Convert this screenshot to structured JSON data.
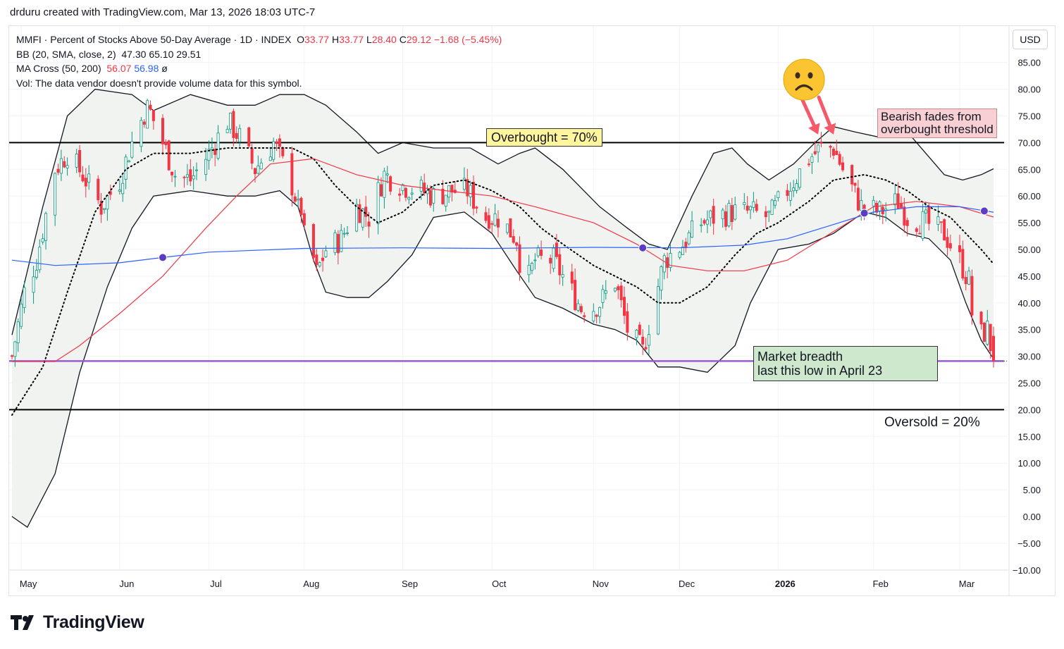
{
  "header": {
    "attribution": "drduru created with TradingView.com, Mar 13, 2026 18:03 UTC-7"
  },
  "legend": {
    "symbol_line": "MMFI · Percent of Stocks Above 50-Day Average · 1D · INDEX",
    "ohlc": {
      "o_label": "O",
      "o": "33.77",
      "h_label": "H",
      "h": "33.77",
      "l_label": "L",
      "l": "28.40",
      "c_label": "C",
      "c": "29.12",
      "change": "−1.68 (−5.45%)"
    },
    "bb_label": "BB (20, SMA, close, 2)",
    "bb_values": [
      "47.30",
      "65.10",
      "29.51"
    ],
    "ma_label": "MA Cross (50, 200)",
    "ma_values": [
      "56.07",
      "56.98"
    ],
    "ma_suffix": "ø",
    "vol_line": "Vol: The data vendor doesn't provide volume data for this symbol."
  },
  "currency_button": "USD",
  "brand": {
    "name": "TradingView",
    "logo_icon": "tradingview-logo-icon"
  },
  "annotations": {
    "overbought": "Overbought = 70%",
    "bearish_line1": "Bearish fades from",
    "bearish_line2": "overbought threshold",
    "breadth_line1": "Market breadth",
    "breadth_line2": "last this low in April 23",
    "oversold": "Oversold = 20%",
    "emoji_icon": "frowning-face-icon",
    "arrow_icon": "down-arrow-icon"
  },
  "colors": {
    "up": "#089981",
    "down": "#f23645",
    "ma50": "#f23645",
    "ma200": "#2962ff",
    "bb": "#131722",
    "bb_fill": "#f0f3f0",
    "support": "#9b59d6",
    "cross": "#5b3cc4"
  },
  "chart_data": {
    "type": "candlestick",
    "y_axis": {
      "min": -10,
      "max": 85,
      "step": 5,
      "ticks": [
        "85.00",
        "80.00",
        "75.00",
        "70.00",
        "65.00",
        "60.00",
        "55.00",
        "50.00",
        "45.00",
        "40.00",
        "35.00",
        "30.00",
        "25.00",
        "20.00",
        "15.00",
        "10.00",
        "5.00",
        "0.00",
        "−5.00",
        "−10.00"
      ],
      "side": "right"
    },
    "x_axis": {
      "ticks": [
        {
          "label": "May",
          "date": "2025-05-01",
          "bold": false
        },
        {
          "label": "Jun",
          "date": "2025-06-02",
          "bold": false
        },
        {
          "label": "Jul",
          "date": "2025-07-01",
          "bold": false
        },
        {
          "label": "Aug",
          "date": "2025-08-01",
          "bold": false
        },
        {
          "label": "Sep",
          "date": "2025-09-02",
          "bold": false
        },
        {
          "label": "Oct",
          "date": "2025-10-01",
          "bold": false
        },
        {
          "label": "Nov",
          "date": "2025-11-03",
          "bold": false
        },
        {
          "label": "Dec",
          "date": "2025-12-01",
          "bold": false
        },
        {
          "label": "2026",
          "date": "2026-01-02",
          "bold": true
        },
        {
          "label": "Feb",
          "date": "2026-02-02",
          "bold": false
        },
        {
          "label": "Mar",
          "date": "2026-03-02",
          "bold": false
        }
      ]
    },
    "date_range": [
      "2025-04-28",
      "2026-03-13"
    ],
    "horizontal_lines": [
      {
        "name": "overbought",
        "value": 70
      },
      {
        "name": "oversold",
        "value": 20
      },
      {
        "name": "april-low",
        "value": 29.1
      }
    ],
    "close": [
      {
        "date": "2025-04-28",
        "value": 30
      },
      {
        "date": "2025-05-02",
        "value": 42
      },
      {
        "date": "2025-05-06",
        "value": 48
      },
      {
        "date": "2025-05-12",
        "value": 65
      },
      {
        "date": "2025-05-16",
        "value": 68
      },
      {
        "date": "2025-05-21",
        "value": 64
      },
      {
        "date": "2025-05-27",
        "value": 58
      },
      {
        "date": "2025-06-02",
        "value": 63
      },
      {
        "date": "2025-06-06",
        "value": 70
      },
      {
        "date": "2025-06-11",
        "value": 77
      },
      {
        "date": "2025-06-16",
        "value": 70
      },
      {
        "date": "2025-06-20",
        "value": 64
      },
      {
        "date": "2025-06-25",
        "value": 63
      },
      {
        "date": "2025-07-01",
        "value": 68
      },
      {
        "date": "2025-07-07",
        "value": 74
      },
      {
        "date": "2025-07-11",
        "value": 71
      },
      {
        "date": "2025-07-16",
        "value": 65
      },
      {
        "date": "2025-07-22",
        "value": 70
      },
      {
        "date": "2025-07-28",
        "value": 62
      },
      {
        "date": "2025-07-31",
        "value": 55
      },
      {
        "date": "2025-08-04",
        "value": 44
      },
      {
        "date": "2025-08-08",
        "value": 50
      },
      {
        "date": "2025-08-13",
        "value": 52
      },
      {
        "date": "2025-08-18",
        "value": 58
      },
      {
        "date": "2025-08-22",
        "value": 56
      },
      {
        "date": "2025-08-27",
        "value": 64
      },
      {
        "date": "2025-09-02",
        "value": 62
      },
      {
        "date": "2025-09-08",
        "value": 61
      },
      {
        "date": "2025-09-12",
        "value": 60
      },
      {
        "date": "2025-09-18",
        "value": 61
      },
      {
        "date": "2025-09-23",
        "value": 61
      },
      {
        "date": "2025-09-29",
        "value": 56
      },
      {
        "date": "2025-10-03",
        "value": 56
      },
      {
        "date": "2025-10-09",
        "value": 52
      },
      {
        "date": "2025-10-10",
        "value": 40
      },
      {
        "date": "2025-10-15",
        "value": 48
      },
      {
        "date": "2025-10-21",
        "value": 48
      },
      {
        "date": "2025-10-27",
        "value": 42
      },
      {
        "date": "2025-10-31",
        "value": 38
      },
      {
        "date": "2025-11-05",
        "value": 40
      },
      {
        "date": "2025-11-10",
        "value": 44
      },
      {
        "date": "2025-11-14",
        "value": 35
      },
      {
        "date": "2025-11-20",
        "value": 30
      },
      {
        "date": "2025-11-21",
        "value": 36
      },
      {
        "date": "2025-11-26",
        "value": 48
      },
      {
        "date": "2025-12-02",
        "value": 51
      },
      {
        "date": "2025-12-08",
        "value": 55
      },
      {
        "date": "2025-12-12",
        "value": 56
      },
      {
        "date": "2025-12-18",
        "value": 57
      },
      {
        "date": "2025-12-24",
        "value": 57
      },
      {
        "date": "2025-12-30",
        "value": 56
      },
      {
        "date": "2026-01-06",
        "value": 62
      },
      {
        "date": "2026-01-12",
        "value": 67
      },
      {
        "date": "2026-01-16",
        "value": 69
      },
      {
        "date": "2026-01-20",
        "value": 69
      },
      {
        "date": "2026-01-23",
        "value": 65
      },
      {
        "date": "2026-01-29",
        "value": 58
      },
      {
        "date": "2026-02-04",
        "value": 57
      },
      {
        "date": "2026-02-10",
        "value": 59
      },
      {
        "date": "2026-02-13",
        "value": 56
      },
      {
        "date": "2026-02-19",
        "value": 55
      },
      {
        "date": "2026-02-25",
        "value": 53
      },
      {
        "date": "2026-03-02",
        "value": 48
      },
      {
        "date": "2026-03-05",
        "value": 44
      },
      {
        "date": "2026-03-06",
        "value": 38
      },
      {
        "date": "2026-03-09",
        "value": 34
      },
      {
        "date": "2026-03-11",
        "value": 35
      },
      {
        "date": "2026-03-13",
        "value": 29.12
      }
    ],
    "bb_upper": [
      {
        "date": "2025-04-28",
        "value": 34
      },
      {
        "date": "2025-05-08",
        "value": 58
      },
      {
        "date": "2025-05-16",
        "value": 75
      },
      {
        "date": "2025-05-25",
        "value": 80
      },
      {
        "date": "2025-06-06",
        "value": 79
      },
      {
        "date": "2025-06-13",
        "value": 76
      },
      {
        "date": "2025-06-25",
        "value": 79
      },
      {
        "date": "2025-07-07",
        "value": 77
      },
      {
        "date": "2025-07-16",
        "value": 77
      },
      {
        "date": "2025-07-24",
        "value": 79
      },
      {
        "date": "2025-08-01",
        "value": 79
      },
      {
        "date": "2025-08-08",
        "value": 77
      },
      {
        "date": "2025-08-18",
        "value": 72
      },
      {
        "date": "2025-08-25",
        "value": 68
      },
      {
        "date": "2025-09-02",
        "value": 70
      },
      {
        "date": "2025-09-12",
        "value": 69
      },
      {
        "date": "2025-09-24",
        "value": 69
      },
      {
        "date": "2025-10-03",
        "value": 66
      },
      {
        "date": "2025-10-10",
        "value": 68
      },
      {
        "date": "2025-10-15",
        "value": 69
      },
      {
        "date": "2025-10-24",
        "value": 65
      },
      {
        "date": "2025-11-05",
        "value": 58
      },
      {
        "date": "2025-11-14",
        "value": 54
      },
      {
        "date": "2025-11-21",
        "value": 51
      },
      {
        "date": "2025-11-27",
        "value": 50
      },
      {
        "date": "2025-12-05",
        "value": 60
      },
      {
        "date": "2025-12-12",
        "value": 68
      },
      {
        "date": "2025-12-18",
        "value": 69
      },
      {
        "date": "2025-12-23",
        "value": 66
      },
      {
        "date": "2025-12-30",
        "value": 63
      },
      {
        "date": "2026-01-07",
        "value": 66
      },
      {
        "date": "2026-01-14",
        "value": 70
      },
      {
        "date": "2026-01-20",
        "value": 73
      },
      {
        "date": "2026-01-27",
        "value": 72
      },
      {
        "date": "2026-02-04",
        "value": 71
      },
      {
        "date": "2026-02-13",
        "value": 72
      },
      {
        "date": "2026-02-19",
        "value": 68
      },
      {
        "date": "2026-02-25",
        "value": 64
      },
      {
        "date": "2026-03-03",
        "value": 63
      },
      {
        "date": "2026-03-09",
        "value": 64
      },
      {
        "date": "2026-03-13",
        "value": 65.1
      }
    ],
    "bb_lower": [
      {
        "date": "2025-04-28",
        "value": 0
      },
      {
        "date": "2025-05-03",
        "value": -2
      },
      {
        "date": "2025-05-12",
        "value": 8
      },
      {
        "date": "2025-05-20",
        "value": 27
      },
      {
        "date": "2025-05-29",
        "value": 43
      },
      {
        "date": "2025-06-06",
        "value": 54
      },
      {
        "date": "2025-06-13",
        "value": 60
      },
      {
        "date": "2025-06-25",
        "value": 61
      },
      {
        "date": "2025-07-07",
        "value": 60
      },
      {
        "date": "2025-07-16",
        "value": 60
      },
      {
        "date": "2025-07-24",
        "value": 61
      },
      {
        "date": "2025-07-30",
        "value": 58
      },
      {
        "date": "2025-08-04",
        "value": 48
      },
      {
        "date": "2025-08-08",
        "value": 42
      },
      {
        "date": "2025-08-15",
        "value": 41
      },
      {
        "date": "2025-08-22",
        "value": 41
      },
      {
        "date": "2025-08-28",
        "value": 44
      },
      {
        "date": "2025-09-05",
        "value": 49
      },
      {
        "date": "2025-09-12",
        "value": 56
      },
      {
        "date": "2025-09-22",
        "value": 57
      },
      {
        "date": "2025-10-01",
        "value": 53
      },
      {
        "date": "2025-10-09",
        "value": 46
      },
      {
        "date": "2025-10-15",
        "value": 41
      },
      {
        "date": "2025-10-24",
        "value": 39
      },
      {
        "date": "2025-11-03",
        "value": 36
      },
      {
        "date": "2025-11-10",
        "value": 35
      },
      {
        "date": "2025-11-17",
        "value": 33
      },
      {
        "date": "2025-11-24",
        "value": 28
      },
      {
        "date": "2025-12-01",
        "value": 28
      },
      {
        "date": "2025-12-10",
        "value": 27
      },
      {
        "date": "2025-12-19",
        "value": 32
      },
      {
        "date": "2025-12-24",
        "value": 40
      },
      {
        "date": "2026-01-02",
        "value": 50
      },
      {
        "date": "2026-01-12",
        "value": 51
      },
      {
        "date": "2026-01-20",
        "value": 53
      },
      {
        "date": "2026-01-30",
        "value": 57
      },
      {
        "date": "2026-02-06",
        "value": 56
      },
      {
        "date": "2026-02-13",
        "value": 53
      },
      {
        "date": "2026-02-20",
        "value": 52
      },
      {
        "date": "2026-02-27",
        "value": 48
      },
      {
        "date": "2026-03-04",
        "value": 40
      },
      {
        "date": "2026-03-09",
        "value": 33
      },
      {
        "date": "2026-03-13",
        "value": 29.51
      }
    ],
    "bb_basis": [
      {
        "date": "2025-04-28",
        "value": 19
      },
      {
        "date": "2025-05-08",
        "value": 28
      },
      {
        "date": "2025-05-16",
        "value": 42
      },
      {
        "date": "2025-05-25",
        "value": 57
      },
      {
        "date": "2025-06-04",
        "value": 65
      },
      {
        "date": "2025-06-13",
        "value": 68
      },
      {
        "date": "2025-06-25",
        "value": 68
      },
      {
        "date": "2025-07-07",
        "value": 69
      },
      {
        "date": "2025-07-16",
        "value": 69
      },
      {
        "date": "2025-07-28",
        "value": 69
      },
      {
        "date": "2025-08-04",
        "value": 67
      },
      {
        "date": "2025-08-11",
        "value": 62
      },
      {
        "date": "2025-08-18",
        "value": 58
      },
      {
        "date": "2025-08-25",
        "value": 55
      },
      {
        "date": "2025-09-02",
        "value": 57
      },
      {
        "date": "2025-09-12",
        "value": 62
      },
      {
        "date": "2025-09-22",
        "value": 63
      },
      {
        "date": "2025-10-01",
        "value": 61
      },
      {
        "date": "2025-10-10",
        "value": 58
      },
      {
        "date": "2025-10-17",
        "value": 54
      },
      {
        "date": "2025-10-24",
        "value": 51
      },
      {
        "date": "2025-11-03",
        "value": 47
      },
      {
        "date": "2025-11-10",
        "value": 45
      },
      {
        "date": "2025-11-17",
        "value": 43
      },
      {
        "date": "2025-11-24",
        "value": 40
      },
      {
        "date": "2025-12-01",
        "value": 40
      },
      {
        "date": "2025-12-10",
        "value": 43
      },
      {
        "date": "2025-12-19",
        "value": 49
      },
      {
        "date": "2025-12-26",
        "value": 53
      },
      {
        "date": "2026-01-02",
        "value": 55
      },
      {
        "date": "2026-01-12",
        "value": 59
      },
      {
        "date": "2026-01-20",
        "value": 63
      },
      {
        "date": "2026-01-30",
        "value": 64
      },
      {
        "date": "2026-02-06",
        "value": 63
      },
      {
        "date": "2026-02-13",
        "value": 61
      },
      {
        "date": "2026-02-20",
        "value": 58
      },
      {
        "date": "2026-02-27",
        "value": 56
      },
      {
        "date": "2026-03-04",
        "value": 53
      },
      {
        "date": "2026-03-09",
        "value": 50
      },
      {
        "date": "2026-03-13",
        "value": 47.3
      }
    ],
    "ma50": [
      {
        "date": "2025-04-28",
        "value": 29
      },
      {
        "date": "2025-05-12",
        "value": 29
      },
      {
        "date": "2025-05-20",
        "value": 32
      },
      {
        "date": "2025-06-02",
        "value": 38
      },
      {
        "date": "2025-06-16",
        "value": 45
      },
      {
        "date": "2025-06-30",
        "value": 54
      },
      {
        "date": "2025-07-10",
        "value": 60
      },
      {
        "date": "2025-07-21",
        "value": 66
      },
      {
        "date": "2025-08-04",
        "value": 67
      },
      {
        "date": "2025-08-18",
        "value": 64
      },
      {
        "date": "2025-09-02",
        "value": 62
      },
      {
        "date": "2025-09-16",
        "value": 61
      },
      {
        "date": "2025-10-01",
        "value": 60
      },
      {
        "date": "2025-10-15",
        "value": 58
      },
      {
        "date": "2025-11-03",
        "value": 55
      },
      {
        "date": "2025-11-17",
        "value": 51
      },
      {
        "date": "2025-11-28",
        "value": 47
      },
      {
        "date": "2025-12-10",
        "value": 46
      },
      {
        "date": "2025-12-22",
        "value": 46
      },
      {
        "date": "2026-01-05",
        "value": 48
      },
      {
        "date": "2026-01-19",
        "value": 53
      },
      {
        "date": "2026-02-02",
        "value": 58
      },
      {
        "date": "2026-02-16",
        "value": 59
      },
      {
        "date": "2026-03-02",
        "value": 58
      },
      {
        "date": "2026-03-13",
        "value": 56.07
      }
    ],
    "ma200": [
      {
        "date": "2025-04-28",
        "value": 48
      },
      {
        "date": "2025-05-12",
        "value": 47
      },
      {
        "date": "2025-06-02",
        "value": 47.5
      },
      {
        "date": "2025-06-16",
        "value": 48.5
      },
      {
        "date": "2025-07-01",
        "value": 49.5
      },
      {
        "date": "2025-08-01",
        "value": 50.2
      },
      {
        "date": "2025-09-02",
        "value": 50.3
      },
      {
        "date": "2025-10-01",
        "value": 50.2
      },
      {
        "date": "2025-11-03",
        "value": 50.4
      },
      {
        "date": "2025-12-01",
        "value": 50.3
      },
      {
        "date": "2025-12-22",
        "value": 50.8
      },
      {
        "date": "2026-01-05",
        "value": 52
      },
      {
        "date": "2026-01-19",
        "value": 54.5
      },
      {
        "date": "2026-02-02",
        "value": 57
      },
      {
        "date": "2026-02-16",
        "value": 58
      },
      {
        "date": "2026-03-02",
        "value": 58
      },
      {
        "date": "2026-03-13",
        "value": 56.98
      }
    ],
    "ma_crosses": [
      {
        "date": "2025-06-16",
        "value": 48.5
      },
      {
        "date": "2025-11-19",
        "value": 50.3
      },
      {
        "date": "2026-01-30",
        "value": 56.8
      },
      {
        "date": "2026-03-10",
        "value": 57.2
      }
    ],
    "arrows_to": [
      {
        "date": "2026-01-15",
        "value": 71
      },
      {
        "date": "2026-01-20",
        "value": 71
      }
    ]
  }
}
